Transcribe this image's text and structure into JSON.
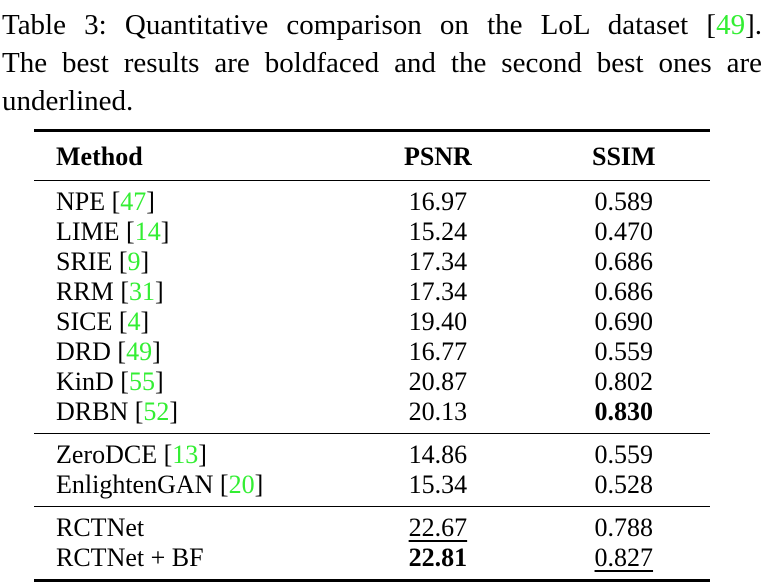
{
  "colors": {
    "background": "#ffffff",
    "text": "#000000",
    "citation_green": "#33ee33",
    "rule": "#000000"
  },
  "caption": {
    "line1_pre": "Table 3: Quantitative comparison on the LoL dataset [",
    "line1_cite": "49",
    "line1_post": "].",
    "line2": "The best results are boldfaced and the second best ones are",
    "line3": "underlined."
  },
  "table": {
    "columns": [
      "Method",
      "PSNR",
      "SSIM"
    ],
    "groups": [
      {
        "rows": [
          {
            "method": "NPE",
            "cite": "47",
            "psnr": "16.97",
            "psnr_style": "normal",
            "ssim": "0.589",
            "ssim_style": "normal"
          },
          {
            "method": "LIME",
            "cite": "14",
            "psnr": "15.24",
            "psnr_style": "normal",
            "ssim": "0.470",
            "ssim_style": "normal"
          },
          {
            "method": "SRIE",
            "cite": "9",
            "psnr": "17.34",
            "psnr_style": "normal",
            "ssim": "0.686",
            "ssim_style": "normal"
          },
          {
            "method": "RRM",
            "cite": "31",
            "psnr": "17.34",
            "psnr_style": "normal",
            "ssim": "0.686",
            "ssim_style": "normal"
          },
          {
            "method": "SICE",
            "cite": "4",
            "psnr": "19.40",
            "psnr_style": "normal",
            "ssim": "0.690",
            "ssim_style": "normal"
          },
          {
            "method": "DRD",
            "cite": "49",
            "psnr": "16.77",
            "psnr_style": "normal",
            "ssim": "0.559",
            "ssim_style": "normal"
          },
          {
            "method": "KinD",
            "cite": "55",
            "psnr": "20.87",
            "psnr_style": "normal",
            "ssim": "0.802",
            "ssim_style": "normal"
          },
          {
            "method": "DRBN",
            "cite": "52",
            "psnr": "20.13",
            "psnr_style": "normal",
            "ssim": "0.830",
            "ssim_style": "bold"
          }
        ]
      },
      {
        "rows": [
          {
            "method": "ZeroDCE",
            "cite": "13",
            "psnr": "14.86",
            "psnr_style": "normal",
            "ssim": "0.559",
            "ssim_style": "normal"
          },
          {
            "method": "EnlightenGAN",
            "cite": "20",
            "psnr": "15.34",
            "psnr_style": "normal",
            "ssim": "0.528",
            "ssim_style": "normal"
          }
        ]
      },
      {
        "rows": [
          {
            "method": "RCTNet",
            "cite": null,
            "psnr": "22.67",
            "psnr_style": "underline",
            "ssim": "0.788",
            "ssim_style": "normal"
          },
          {
            "method": "RCTNet + BF",
            "cite": null,
            "psnr": "22.81",
            "psnr_style": "bold",
            "ssim": "0.827",
            "ssim_style": "underline"
          }
        ]
      }
    ]
  }
}
